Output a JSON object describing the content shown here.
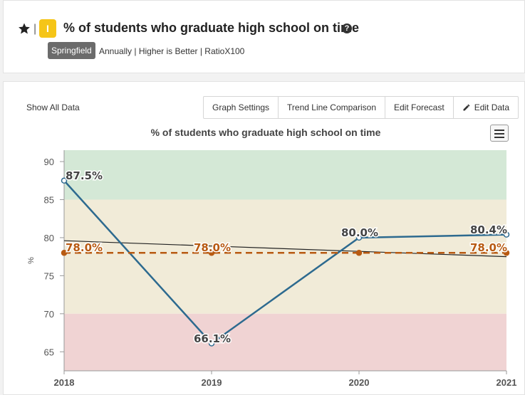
{
  "header": {
    "title": "% of students who graduate high school on time",
    "badge_letter": "I",
    "pipe": "|",
    "help_glyph": "?",
    "location": "Springfield",
    "meta": "Annually | Higher is Better | RatioX100",
    "badge_color": "#f5c518"
  },
  "toolbar": {
    "show_all": "Show All Data",
    "buttons": [
      "Graph Settings",
      "Trend Line Comparison",
      "Edit Forecast",
      "Edit Data"
    ]
  },
  "chart_data": {
    "type": "line",
    "title": "% of students who graduate high school on time",
    "ylabel": "%",
    "xlabel": "",
    "x": [
      "2018",
      "2019",
      "2020",
      "2021"
    ],
    "ylim": [
      62.5,
      91.5
    ],
    "yticks": [
      65,
      70,
      75,
      80,
      85,
      90
    ],
    "bands": [
      {
        "from": 85,
        "to": 91.5,
        "color": "#d4e8d6"
      },
      {
        "from": 70,
        "to": 85,
        "color": "#f1ebd8"
      },
      {
        "from": 62.5,
        "to": 70,
        "color": "#f0d3d3"
      }
    ],
    "series": [
      {
        "values": [
          87.5,
          66.1,
          80.0,
          80.4
        ],
        "labels": [
          "87.5%",
          "66.1%",
          "80.0%",
          "80.4%"
        ],
        "color": "#2d6a8f"
      },
      {
        "values": [
          78.0,
          78.0,
          78.0,
          78.0
        ],
        "labels": [
          "78.0%",
          "78.0%",
          "",
          "78.0%"
        ],
        "color": "#b85a12",
        "dashed": true
      }
    ],
    "trend_line": {
      "values": [
        79.6,
        78.9,
        78.2,
        77.5
      ],
      "color": "#222"
    }
  }
}
